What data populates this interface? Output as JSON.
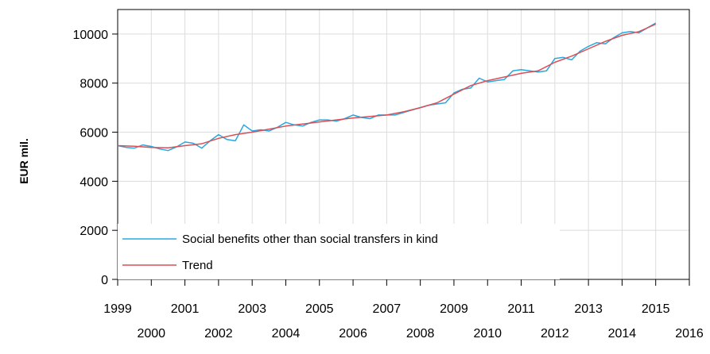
{
  "chart_data": {
    "type": "line",
    "title": "",
    "xlabel": "",
    "ylabel": "EUR mil.",
    "xlim": [
      1999,
      2016
    ],
    "ylim": [
      0,
      11000
    ],
    "y_ticks": [
      0,
      2000,
      4000,
      6000,
      8000,
      10000
    ],
    "y_tick_labels": [
      "0",
      "2000",
      "4000",
      "6000",
      "8000",
      "10000"
    ],
    "x_ticks": [
      1999,
      2000,
      2001,
      2002,
      2003,
      2004,
      2005,
      2006,
      2007,
      2008,
      2009,
      2010,
      2011,
      2012,
      2013,
      2014,
      2015,
      2016
    ],
    "x_tick_labels": [
      "1999",
      "2000",
      "2001",
      "2002",
      "2003",
      "2004",
      "2005",
      "2006",
      "2007",
      "2008",
      "2009",
      "2010",
      "2011",
      "2012",
      "2013",
      "2014",
      "2015",
      "2016"
    ],
    "grid": true,
    "legend_position": "bottom-left",
    "series": [
      {
        "name": "Social benefits other than social transfers in kind",
        "color": "#29a8e0",
        "x": [
          1999.0,
          1999.25,
          1999.5,
          1999.75,
          2000.0,
          2000.25,
          2000.5,
          2000.75,
          2001.0,
          2001.25,
          2001.5,
          2001.75,
          2002.0,
          2002.25,
          2002.5,
          2002.75,
          2003.0,
          2003.25,
          2003.5,
          2003.75,
          2004.0,
          2004.25,
          2004.5,
          2004.75,
          2005.0,
          2005.25,
          2005.5,
          2005.75,
          2006.0,
          2006.25,
          2006.5,
          2006.75,
          2007.0,
          2007.25,
          2007.5,
          2007.75,
          2008.0,
          2008.25,
          2008.5,
          2008.75,
          2009.0,
          2009.25,
          2009.5,
          2009.75,
          2010.0,
          2010.25,
          2010.5,
          2010.75,
          2011.0,
          2011.25,
          2011.5,
          2011.75,
          2012.0,
          2012.25,
          2012.5,
          2012.75,
          2013.0,
          2013.25,
          2013.5,
          2013.75,
          2014.0,
          2014.25,
          2014.5,
          2014.75,
          2015.0
        ],
        "values": [
          5450,
          5380,
          5350,
          5480,
          5420,
          5320,
          5250,
          5400,
          5600,
          5550,
          5350,
          5650,
          5900,
          5700,
          5650,
          6300,
          6050,
          6100,
          6050,
          6200,
          6400,
          6300,
          6250,
          6400,
          6500,
          6500,
          6450,
          6550,
          6700,
          6600,
          6550,
          6700,
          6700,
          6700,
          6800,
          6900,
          7000,
          7100,
          7150,
          7200,
          7600,
          7750,
          7800,
          8200,
          8050,
          8100,
          8150,
          8500,
          8550,
          8500,
          8450,
          8500,
          9000,
          9050,
          8950,
          9300,
          9500,
          9650,
          9600,
          9850,
          10050,
          10100,
          10050,
          10250,
          10450
        ]
      },
      {
        "name": "Trend",
        "color": "#d94f56",
        "x": [
          1999.0,
          1999.5,
          2000.0,
          2000.5,
          2001.0,
          2001.5,
          2002.0,
          2002.5,
          2003.0,
          2003.5,
          2004.0,
          2004.5,
          2005.0,
          2005.5,
          2006.0,
          2006.5,
          2007.0,
          2007.5,
          2008.0,
          2008.5,
          2009.0,
          2009.5,
          2010.0,
          2010.5,
          2011.0,
          2011.5,
          2012.0,
          2012.5,
          2013.0,
          2013.5,
          2014.0,
          2014.5,
          2015.0
        ],
        "values": [
          5450,
          5430,
          5380,
          5360,
          5450,
          5530,
          5750,
          5900,
          6000,
          6120,
          6250,
          6330,
          6420,
          6500,
          6580,
          6640,
          6700,
          6830,
          7000,
          7200,
          7550,
          7900,
          8100,
          8250,
          8400,
          8500,
          8850,
          9100,
          9400,
          9700,
          9950,
          10100,
          10400
        ]
      }
    ]
  }
}
